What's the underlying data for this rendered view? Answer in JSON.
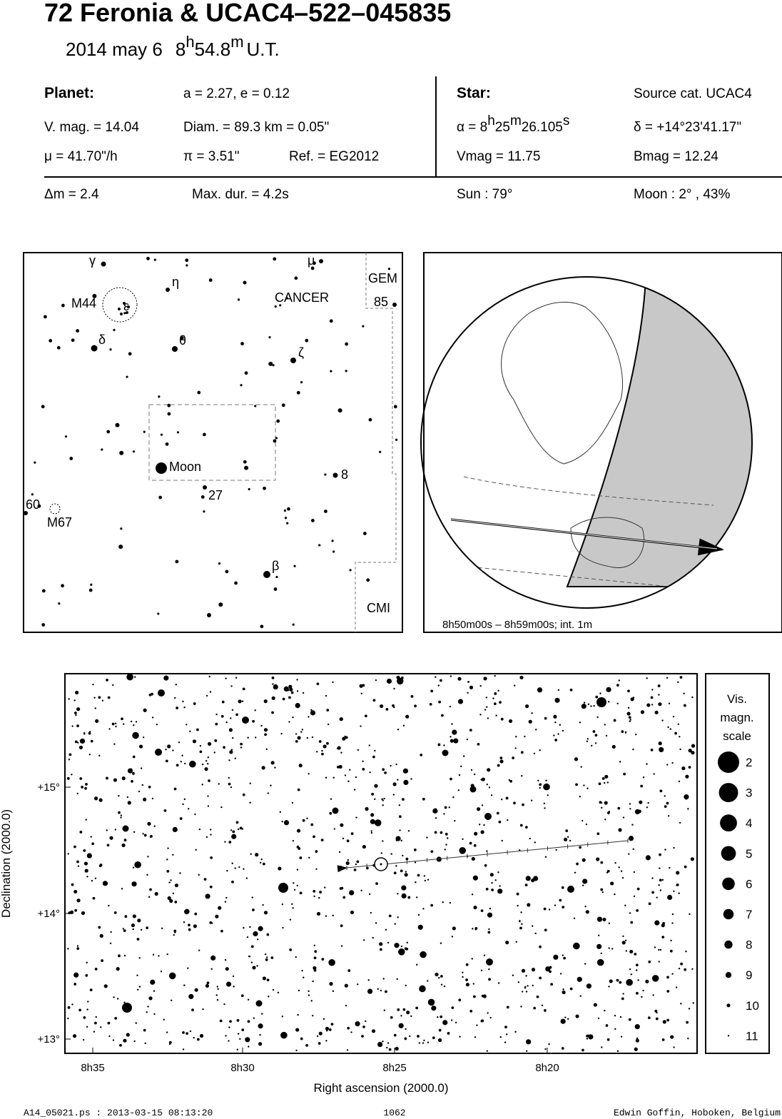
{
  "header": {
    "title": "72 Feronia  &  UCAC4–522–045835",
    "date": "2014 may  6",
    "time_hours": "8",
    "time_h": "h",
    "time_minutes": "54.8",
    "time_m": "m",
    "time_ut": "U.T."
  },
  "planet": {
    "label": "Planet:",
    "orbit": "a = 2.27, e = 0.12",
    "vmag": "V. mag. = 14.04",
    "diam": "Diam. = 89.3 km = 0.05\"",
    "mu": "μ =  41.70\"/h",
    "pi": "π =  3.51\"",
    "ref": "Ref. = EG2012"
  },
  "star": {
    "label": "Star:",
    "source": "Source cat.  UCAC4",
    "alpha_prefix": "α =  ",
    "alpha_h": "8",
    "alpha_hs": "h",
    "alpha_m": "25",
    "alpha_ms": "m",
    "alpha_s": "26.105",
    "alpha_ss": "s",
    "delta": "δ = +14°23'41.17\"",
    "vmag": "Vmag = 11.75",
    "bmag": "Bmag = 12.24"
  },
  "summary": {
    "dm": "Δm = 2.4",
    "maxdur": "Max. dur. = 4.2s",
    "sun": "Sun :  79°",
    "moon": "Moon :   2° , 43%"
  },
  "finder": {
    "labels": [
      "γ",
      "μ",
      "η",
      "GEM",
      "M44",
      "ε",
      "CANCER",
      "85",
      "δ",
      "θ",
      "ζ",
      "Moon",
      "8",
      "27",
      "60",
      "M67",
      "β",
      "CMI"
    ]
  },
  "globe": {
    "caption": "8h50m00s –  8h59m00s; int.  1m"
  },
  "chart": {
    "xticks": [
      "8h35",
      "8h30",
      "8h25",
      "8h20"
    ],
    "yticks": [
      "+15°",
      "+14°",
      "+13°"
    ],
    "xlabel": "Right ascension (2000.0)",
    "ylabel": "Declination (2000.0)",
    "legend_title": [
      "Vis.",
      "magn.",
      "scale"
    ],
    "legend_values": [
      "2",
      "3",
      "4",
      "5",
      "6",
      "7",
      "8",
      "9",
      "10",
      "11"
    ]
  },
  "footer": {
    "file": "A14_05021.ps : 2013-03-15 08:13:20",
    "number": "1062",
    "author": "Edwin Goffin, Hoboken, Belgium"
  }
}
